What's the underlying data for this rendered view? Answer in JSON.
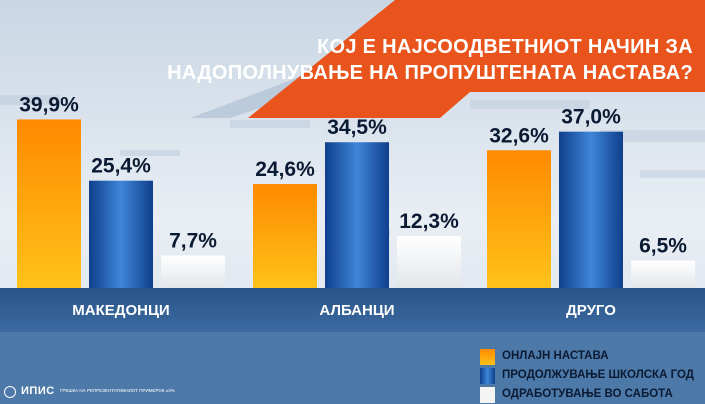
{
  "chart_data": {
    "type": "bar",
    "title_lines": [
      "КОЈ Е НАЈСООДВЕТНИОТ НАЧИН ЗА",
      "НАДОПОЛНУВАЊЕ НА ПРОПУШТЕНАТА НАСТАВА?"
    ],
    "categories": [
      "МАКЕДОНЦИ",
      "АЛБАНЦИ",
      "ДРУГО"
    ],
    "series": [
      {
        "name": "ОНЛАЈН НАСТАВА",
        "values": [
          39.9,
          24.6,
          32.6
        ],
        "labels": [
          "39,9%",
          "24,6%",
          "32,6%"
        ],
        "color": "#f7a100"
      },
      {
        "name": "ПРОДОЛЖУВАЊЕ ШКОЛСКА ГОД",
        "values": [
          25.4,
          34.5,
          37.0
        ],
        "labels": [
          "25,4%",
          "34,5%",
          "37,0%"
        ],
        "color": "#1f5fb5"
      },
      {
        "name": "ОДРАБОТУВАЊЕ ВО САБОТА",
        "values": [
          7.7,
          12.3,
          6.5
        ],
        "labels": [
          "7,7%",
          "12,3%",
          "6,5%"
        ],
        "color": "#f2f2f2"
      }
    ],
    "ylim": [
      0,
      40
    ],
    "legend_position": "bottom-right",
    "grid": false
  },
  "colors": {
    "background_light": "#d9e2ec",
    "title_band": "#e8541c",
    "baseline_band": "#2f5d92",
    "bottom_panel": "#4d79a8"
  },
  "logo": {
    "icon": "ipis-circle-icon",
    "name": "ИПИС",
    "note": "ГРЕШКА НА РЕПРЕЗЕНТАТИВНИОТ ПРИМЕРОК ±3%"
  }
}
